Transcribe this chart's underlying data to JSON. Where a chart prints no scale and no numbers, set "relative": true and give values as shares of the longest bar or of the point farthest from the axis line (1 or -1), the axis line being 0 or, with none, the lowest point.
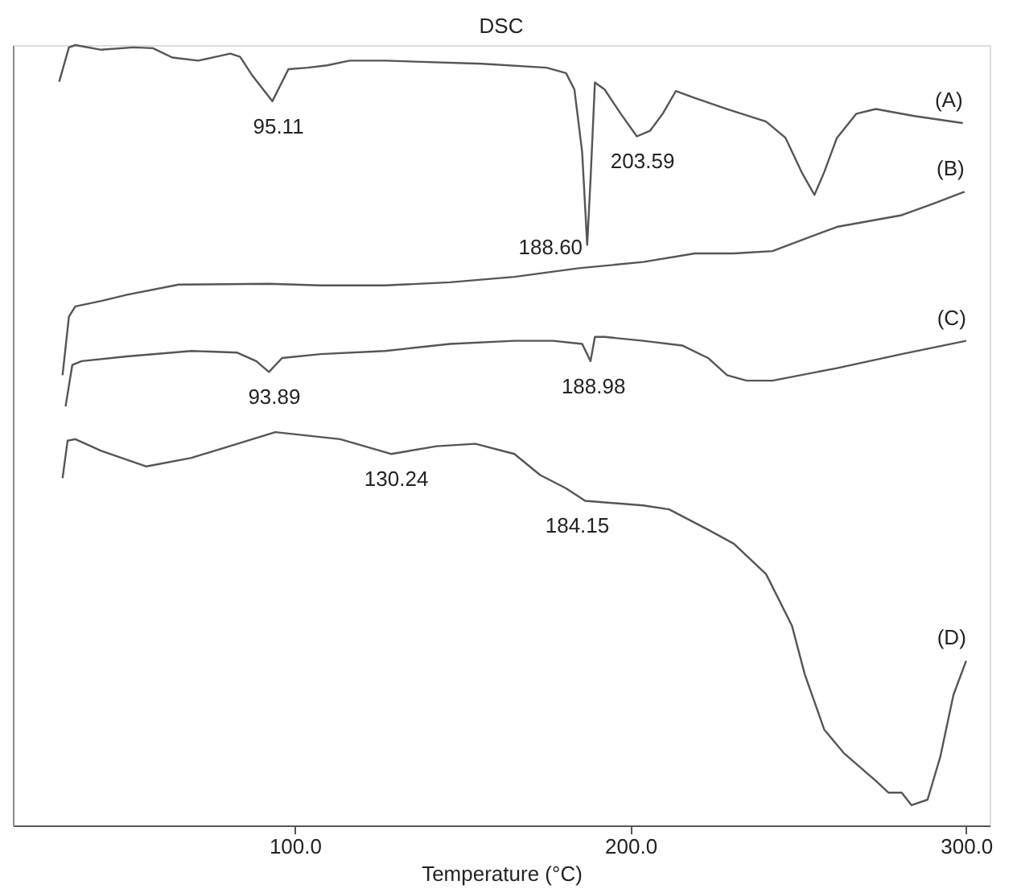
{
  "chart_data": {
    "type": "line",
    "title": "DSC",
    "xlabel": "Temperature (°C)",
    "relative": true,
    "grid": false,
    "marker": "none",
    "line_style": "solid",
    "xlim": [
      16,
      307
    ],
    "xticks": [
      {
        "value": 100,
        "label": "100.0"
      },
      {
        "value": 200,
        "label": "200.0"
      },
      {
        "value": 300,
        "label": "300.0"
      }
    ],
    "series": [
      {
        "name": "(A)",
        "color": "#555555",
        "x": [
          29.8,
          32.7,
          34.6,
          42.3,
          51.9,
          57.7,
          63.5,
          71.2,
          80.8,
          83.7,
          87.5,
          93.3,
          98.1,
          103.8,
          109.6,
          116.3,
          126.9,
          155.8,
          175.0,
          180.8,
          183.3,
          185.6,
          187.1,
          188.1,
          189.4,
          192.3,
          197.1,
          201.9,
          205.8,
          209.6,
          213.5,
          219.2,
          228.8,
          240.4,
          246.2,
          251.0,
          254.8,
          257.7,
          261.5,
          267.3,
          273.1,
          284.6,
          299.0
        ],
        "values": [
          0.953,
          0.997,
          1.0,
          0.994,
          0.997,
          0.996,
          0.984,
          0.98,
          0.989,
          0.985,
          0.96,
          0.928,
          0.969,
          0.971,
          0.974,
          0.98,
          0.98,
          0.976,
          0.971,
          0.964,
          0.943,
          0.863,
          0.744,
          0.828,
          0.952,
          0.943,
          0.912,
          0.883,
          0.89,
          0.912,
          0.941,
          0.932,
          0.918,
          0.902,
          0.881,
          0.837,
          0.808,
          0.837,
          0.881,
          0.912,
          0.918,
          0.909,
          0.9
        ]
      },
      {
        "name": "(B)",
        "color": "#555555",
        "x": [
          30.8,
          32.7,
          34.6,
          42.3,
          50.0,
          65.4,
          92.3,
          107.7,
          126.9,
          146.2,
          165.4,
          184.6,
          203.8,
          219.2,
          230.8,
          242.3,
          261.5,
          280.8,
          290.4,
          299.5
        ],
        "values": [
          0.577,
          0.652,
          0.665,
          0.672,
          0.68,
          0.693,
          0.694,
          0.692,
          0.692,
          0.696,
          0.703,
          0.714,
          0.722,
          0.733,
          0.733,
          0.736,
          0.767,
          0.782,
          0.797,
          0.812
        ]
      },
      {
        "name": "(C)",
        "color": "#555555",
        "x": [
          31.7,
          33.7,
          36.5,
          50.0,
          69.2,
          82.7,
          88.5,
          92.3,
          96.2,
          107.7,
          126.9,
          146.2,
          165.4,
          176.9,
          185.6,
          188.1,
          189.4,
          192.3,
          203.8,
          215.4,
          223.1,
          228.8,
          234.6,
          242.3,
          261.5,
          280.8,
          300.0
        ],
        "values": [
          0.537,
          0.59,
          0.595,
          0.601,
          0.608,
          0.606,
          0.595,
          0.581,
          0.599,
          0.604,
          0.608,
          0.617,
          0.621,
          0.621,
          0.617,
          0.595,
          0.626,
          0.626,
          0.621,
          0.615,
          0.599,
          0.577,
          0.57,
          0.57,
          0.586,
          0.604,
          0.621
        ]
      },
      {
        "name": "(D)",
        "color": "#555555",
        "x": [
          30.8,
          32.3,
          34.6,
          42.3,
          55.8,
          69.2,
          94.2,
          113.5,
          128.8,
          142.3,
          153.8,
          165.4,
          173.1,
          180.8,
          186.5,
          203.8,
          211.5,
          223.1,
          230.8,
          240.4,
          248.1,
          251.9,
          257.7,
          263.5,
          273.1,
          276.9,
          280.8,
          283.7,
          288.5,
          292.3,
          296.2,
          300.0
        ],
        "values": [
          0.445,
          0.493,
          0.495,
          0.48,
          0.46,
          0.471,
          0.504,
          0.495,
          0.476,
          0.486,
          0.489,
          0.476,
          0.449,
          0.432,
          0.416,
          0.41,
          0.405,
          0.379,
          0.361,
          0.322,
          0.256,
          0.194,
          0.123,
          0.093,
          0.057,
          0.042,
          0.042,
          0.026,
          0.033,
          0.088,
          0.167,
          0.211
        ]
      }
    ],
    "annotations": [
      {
        "text": "95.11",
        "x": 95.11,
        "y": 0.928
      },
      {
        "text": "188.60",
        "x": 188.6,
        "y": 0.744
      },
      {
        "text": "203.59",
        "x": 203.59,
        "y": 0.883
      },
      {
        "text": "93.89",
        "x": 93.89,
        "y": 0.581
      },
      {
        "text": "188.98",
        "x": 188.98,
        "y": 0.595
      },
      {
        "text": "130.24",
        "x": 130.24,
        "y": 0.476
      },
      {
        "text": "184.15",
        "x": 184.15,
        "y": 0.416
      }
    ]
  }
}
